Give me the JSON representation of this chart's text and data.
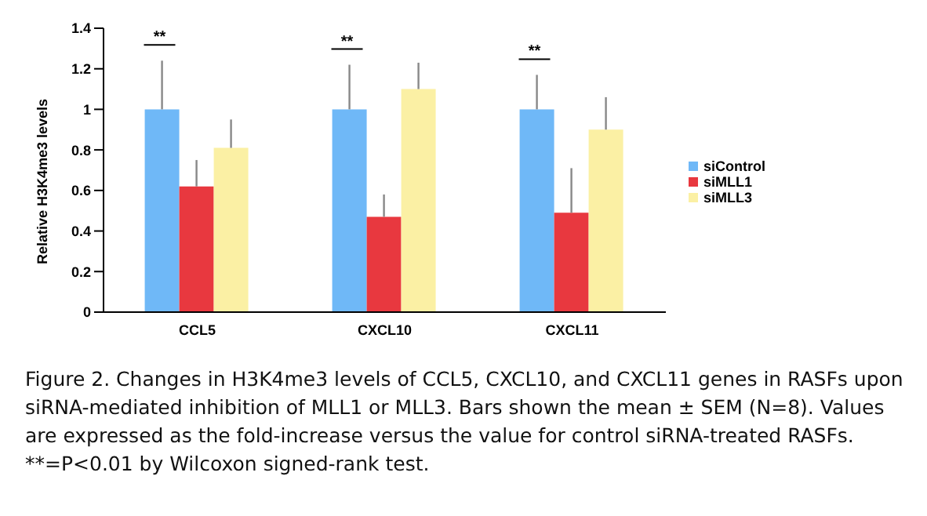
{
  "chart_data": {
    "type": "bar",
    "categories": [
      "CCL5",
      "CXCL10",
      "CXCL11"
    ],
    "ylabel": "Relative H3K4me3 levels",
    "ylim": [
      0,
      1.4
    ],
    "yticks": [
      0,
      0.2,
      0.4,
      0.6,
      0.8,
      1,
      1.2,
      1.4
    ],
    "grid": false,
    "legend": "right",
    "series": [
      {
        "name": "siControl",
        "color": "#6fb8f7",
        "values": [
          1,
          1,
          1
        ],
        "errors": [
          [
            1,
            1.24
          ],
          [
            1,
            1.22
          ],
          [
            1,
            1.17
          ]
        ]
      },
      {
        "name": "siMLL1",
        "color": "#e8383f",
        "values": [
          0.62,
          0.47,
          0.49
        ],
        "errors": [
          [
            0.62,
            0.75
          ],
          [
            0.47,
            0.58
          ],
          [
            0.49,
            0.71
          ]
        ]
      },
      {
        "name": "siMLL3",
        "color": "#fbf0a4",
        "values": [
          0.81,
          1.1,
          0.9
        ],
        "errors": [
          [
            0.81,
            0.95
          ],
          [
            1.1,
            1.23
          ],
          [
            0.9,
            1.06
          ]
        ]
      }
    ],
    "annotations": [
      "**",
      "**",
      "**",
      "Figure 2. Changes in H3K4me3 levels of CCL5, CXCL10, and CXCL11 genes in RASFs upon siRNA-mediated inhibition of MLL1 or MLL3. Bars shown the mean ± SEM (N=8). Values are expressed as the fold-increase versus the value for control siRNA-treated RASFs.",
      "**=P<0.01 by Wilcoxon signed-rank test."
    ]
  }
}
